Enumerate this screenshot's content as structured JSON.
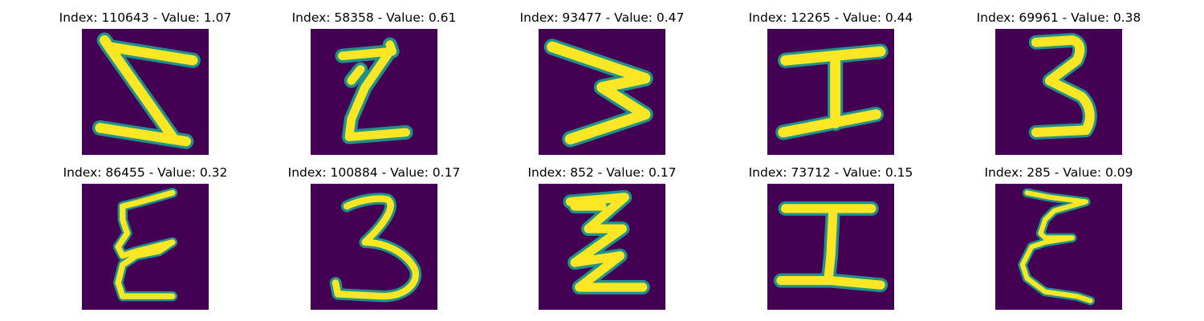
{
  "colors": {
    "background": "#440154",
    "edge": "#21918c",
    "mid": "#5ec962",
    "stroke": "#fde725"
  },
  "panels": [
    {
      "title": "Index: 110643 - Value: 1.07",
      "icon": "rotated-letter-z-image"
    },
    {
      "title": "Index: 58358 - Value: 0.61",
      "icon": "letter-z-image"
    },
    {
      "title": "Index: 93477 - Value: 0.47",
      "icon": "rotated-letter-m-image"
    },
    {
      "title": "Index: 12265 - Value: 0.44",
      "icon": "letter-i-image"
    },
    {
      "title": "Index: 69961 - Value: 0.38",
      "icon": "digit-3-image"
    },
    {
      "title": "Index: 86455 - Value: 0.32",
      "icon": "letter-e-image"
    },
    {
      "title": "Index: 100884 - Value: 0.17",
      "icon": "digit-3-image"
    },
    {
      "title": "Index: 852 - Value: 0.17",
      "icon": "zigzag-letter-image"
    },
    {
      "title": "Index: 73712 - Value: 0.15",
      "icon": "letter-i-image"
    },
    {
      "title": "Index: 285 - Value: 0.09",
      "icon": "letter-e-image"
    }
  ]
}
